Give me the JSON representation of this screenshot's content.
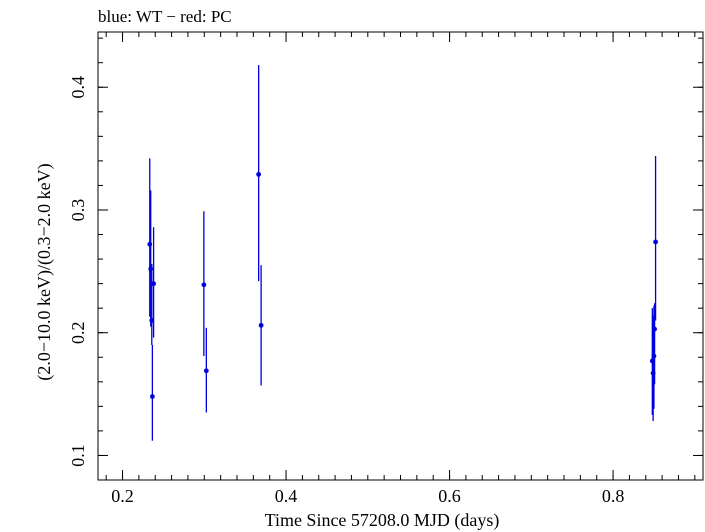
{
  "chart_data": {
    "type": "scatter",
    "title": "blue: WT − red: PC",
    "xlabel": "Time Since 57208.0 MJD (days)",
    "ylabel": "(2.0−10.0 keV)/(0.3−2.0 keV)",
    "xlim": [
      0.17,
      0.91
    ],
    "ylim": [
      0.08,
      0.445
    ],
    "x_ticks": [
      0.2,
      0.4,
      0.6,
      0.8
    ],
    "x_tick_labels": [
      "0.2",
      "0.4",
      "0.6",
      "0.8"
    ],
    "y_ticks": [
      0.1,
      0.2,
      0.3,
      0.4
    ],
    "y_tick_labels": [
      "0.1",
      "0.2",
      "0.3",
      "0.4"
    ],
    "x_minor_step": 0.02,
    "y_minor_step": 0.02,
    "grid": false,
    "series": [
      {
        "name": "WT",
        "color": "#0000dd",
        "points": [
          {
            "x": 0.2333,
            "y": 0.272,
            "ylo": 0.213,
            "yhi": 0.342
          },
          {
            "x": 0.2345,
            "y": 0.252,
            "ylo": 0.205,
            "yhi": 0.316
          },
          {
            "x": 0.2358,
            "y": 0.21,
            "ylo": 0.19,
            "yhi": 0.256
          },
          {
            "x": 0.2365,
            "y": 0.148,
            "ylo": 0.112,
            "yhi": 0.19
          },
          {
            "x": 0.238,
            "y": 0.24,
            "ylo": 0.196,
            "yhi": 0.286
          },
          {
            "x": 0.2995,
            "y": 0.239,
            "ylo": 0.181,
            "yhi": 0.299
          },
          {
            "x": 0.3025,
            "y": 0.169,
            "ylo": 0.135,
            "yhi": 0.204
          },
          {
            "x": 0.3665,
            "y": 0.329,
            "ylo": 0.242,
            "yhi": 0.418
          },
          {
            "x": 0.3695,
            "y": 0.206,
            "ylo": 0.157,
            "yhi": 0.255
          },
          {
            "x": 0.848,
            "y": 0.177,
            "ylo": 0.133,
            "yhi": 0.22
          },
          {
            "x": 0.849,
            "y": 0.167,
            "ylo": 0.128,
            "yhi": 0.214
          },
          {
            "x": 0.85,
            "y": 0.181,
            "ylo": 0.138,
            "yhi": 0.222
          },
          {
            "x": 0.8508,
            "y": 0.203,
            "ylo": 0.158,
            "yhi": 0.224
          },
          {
            "x": 0.852,
            "y": 0.274,
            "ylo": 0.21,
            "yhi": 0.344
          }
        ]
      }
    ]
  }
}
